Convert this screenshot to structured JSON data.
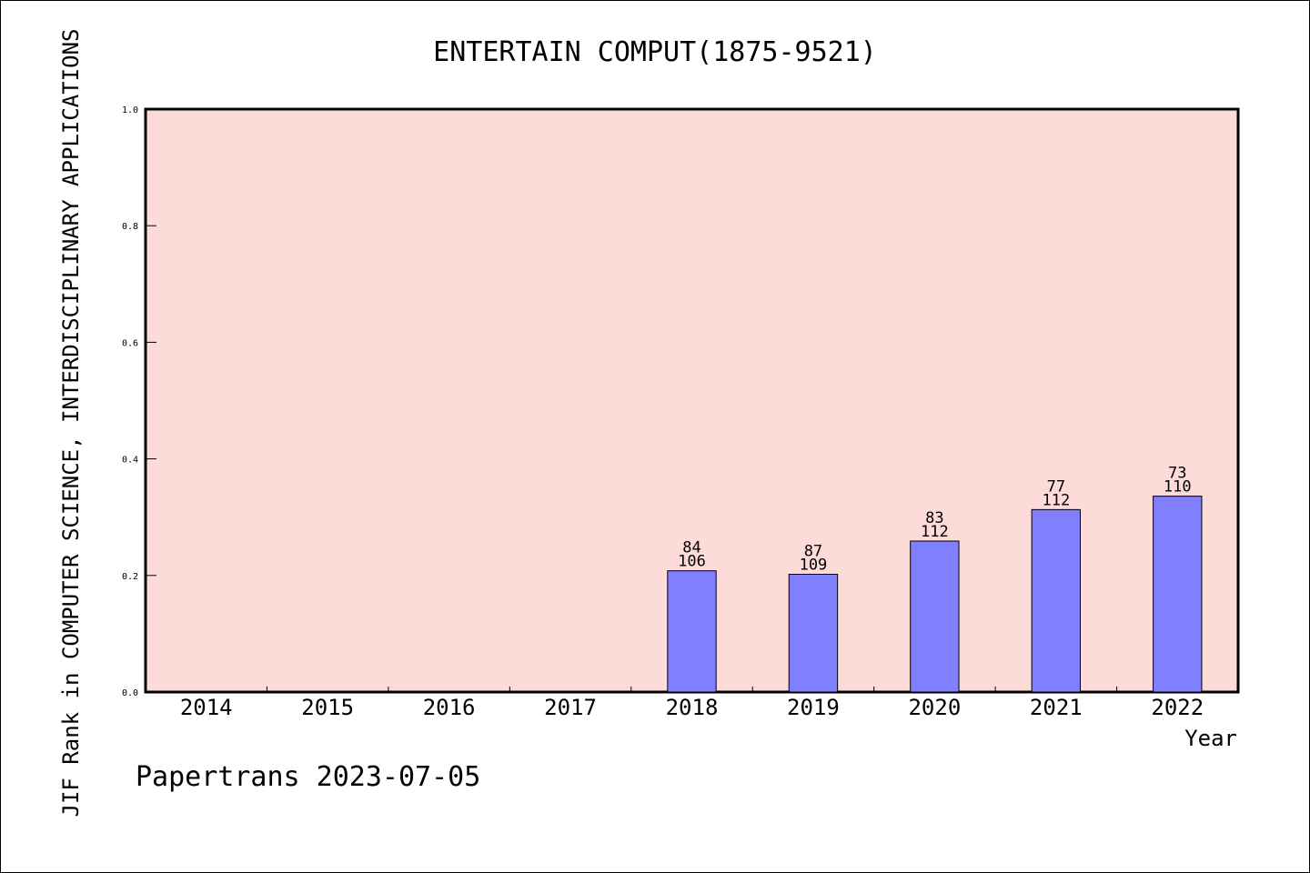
{
  "chart_data": {
    "type": "bar",
    "title": "ENTERTAIN COMPUT(1875-9521)",
    "xlabel": "Year",
    "ylabel": "JIF Rank in COMPUTER SCIENCE, INTERDISCIPLINARY APPLICATIONS",
    "categories": [
      "2014",
      "2015",
      "2016",
      "2017",
      "2018",
      "2019",
      "2020",
      "2021",
      "2022"
    ],
    "values": [
      null,
      null,
      null,
      null,
      0.208,
      0.202,
      0.259,
      0.313,
      0.336
    ],
    "rank": [
      null,
      null,
      null,
      null,
      "84",
      "87",
      "83",
      "77",
      "73"
    ],
    "total": [
      null,
      null,
      null,
      null,
      "106",
      "109",
      "112",
      "112",
      "110"
    ],
    "ylim": [
      0,
      1.0
    ],
    "yticks": [
      "0.0",
      "0.2",
      "0.4",
      "0.6",
      "0.8",
      "1.0"
    ],
    "grid": false,
    "colors": {
      "plot_background": "#fddbd8",
      "bar_fill": "#8080ff",
      "bar_stroke": "#000000"
    }
  },
  "footer": {
    "text": "Papertrans 2023-07-05"
  }
}
